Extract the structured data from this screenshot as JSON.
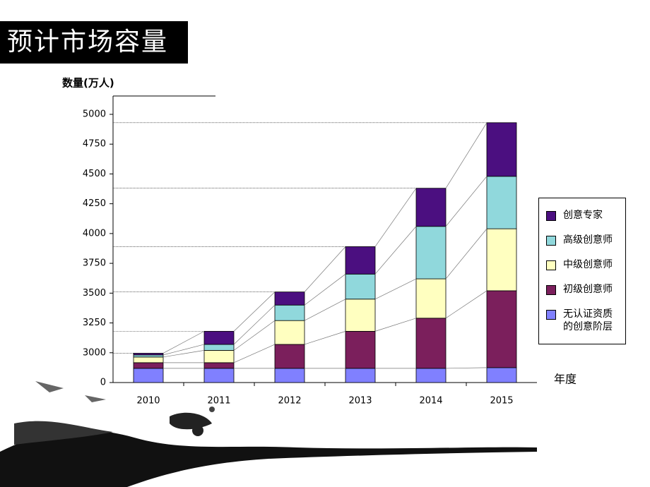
{
  "chart_data": {
    "type": "stacked_bar",
    "title": "预计市场容量",
    "y_label": "数量(万人)",
    "x_label": "年度",
    "categories": [
      "2010",
      "2011",
      "2012",
      "2013",
      "2014",
      "2015"
    ],
    "series": [
      {
        "name": "无认证资质的创意阶层",
        "color": "#8080ff",
        "values": [
          1430,
          1430,
          1430,
          1430,
          1430,
          1500
        ]
      },
      {
        "name": "初级创意师",
        "color": "#7b1f5c",
        "values": [
          570,
          570,
          1640,
          1750,
          1860,
          2020
        ]
      },
      {
        "name": "中级创意师",
        "color": "#ffffc0",
        "values": [
          570,
          1020,
          200,
          270,
          330,
          520
        ]
      },
      {
        "name": "高级创意师",
        "color": "#90d8dc",
        "values": [
          210,
          50,
          130,
          210,
          440,
          440
        ]
      },
      {
        "name": "创意专家",
        "color": "#4b0f80",
        "values": [
          170,
          110,
          110,
          230,
          320,
          450
        ]
      }
    ],
    "ylim": [
      0,
      5000
    ],
    "yticks": [
      0,
      3000,
      3250,
      3500,
      3750,
      4000,
      4250,
      4500,
      4750,
      5000
    ],
    "y_axis_break": true
  }
}
